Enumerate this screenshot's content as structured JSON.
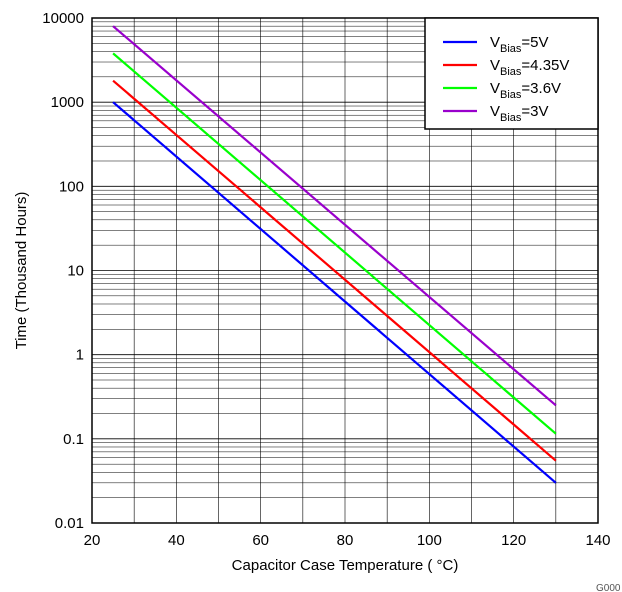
{
  "chart_data": {
    "type": "line",
    "xlabel": "Capacitor Case Temperature ( °C)",
    "ylabel": "Time (Thousand Hours)",
    "xlim": [
      20,
      140
    ],
    "ylim": [
      0.01,
      10000
    ],
    "yscale": "log",
    "grid": true,
    "x_ticks": [
      "20",
      "40",
      "60",
      "80",
      "100",
      "120",
      "140"
    ],
    "y_ticks": [
      "0.01",
      "0.1",
      "1",
      "10",
      "100",
      "1000",
      "10000"
    ],
    "legend_position": "top-right",
    "figure_id": "G000",
    "series": [
      {
        "name": "VBias=5V",
        "label_main": "V",
        "label_sub": "Bias",
        "label_tail": "=5V",
        "color": "#0000ff",
        "x": [
          25,
          130
        ],
        "y": [
          1000,
          0.03
        ]
      },
      {
        "name": "VBias=4.35V",
        "label_main": "V",
        "label_sub": "Bias",
        "label_tail": "=4.35V",
        "color": "#ff0000",
        "x": [
          25,
          130
        ],
        "y": [
          1800,
          0.055
        ]
      },
      {
        "name": "VBias=3.6V",
        "label_main": "V",
        "label_sub": "Bias",
        "label_tail": "=3.6V",
        "color": "#00ff00",
        "x": [
          25,
          130
        ],
        "y": [
          3800,
          0.115
        ]
      },
      {
        "name": "VBias=3V",
        "label_main": "V",
        "label_sub": "Bias",
        "label_tail": "=3V",
        "color": "#9900cc",
        "x": [
          25,
          130
        ],
        "y": [
          8000,
          0.25
        ]
      }
    ]
  }
}
